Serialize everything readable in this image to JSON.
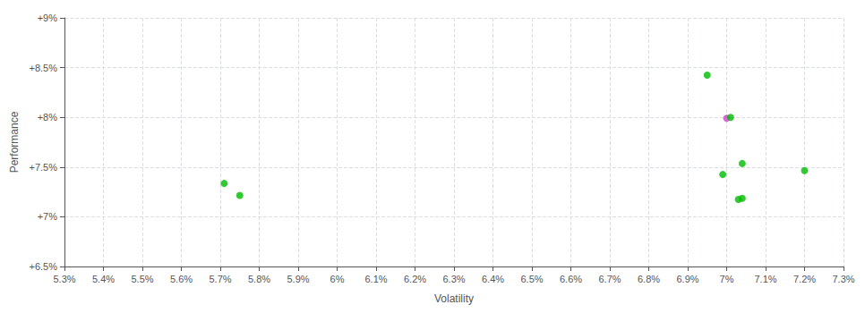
{
  "chart_data": {
    "type": "scatter",
    "xlabel": "Volatility",
    "ylabel": "Performance",
    "x": [
      0.0571,
      0.0575,
      0.0695,
      0.07,
      0.0701,
      0.0704,
      0.0699,
      0.0704,
      0.0703,
      0.072
    ],
    "values": [
      0.07335,
      0.07215,
      0.08425,
      0.0799,
      0.08,
      0.07535,
      0.07425,
      0.07185,
      0.07175,
      0.07465
    ],
    "colors": [
      "#00bb00",
      "#00bb00",
      "#00bb00",
      "#cc44cc",
      "#00bb00",
      "#00bb00",
      "#00bb00",
      "#00bb00",
      "#00bb00",
      "#00bb00"
    ],
    "marker": "circle",
    "xlim": [
      0.053,
      0.073
    ],
    "ylim": [
      0.065,
      0.09
    ],
    "xticks": [
      {
        "value": 0.053,
        "label": "5.3%"
      },
      {
        "value": 0.054,
        "label": "5.4%"
      },
      {
        "value": 0.055,
        "label": "5.5%"
      },
      {
        "value": 0.056,
        "label": "5.6%"
      },
      {
        "value": 0.057,
        "label": "5.7%"
      },
      {
        "value": 0.058,
        "label": "5.8%"
      },
      {
        "value": 0.059,
        "label": "5.9%"
      },
      {
        "value": 0.06,
        "label": "6%"
      },
      {
        "value": 0.061,
        "label": "6.1%"
      },
      {
        "value": 0.062,
        "label": "6.2%"
      },
      {
        "value": 0.063,
        "label": "6.3%"
      },
      {
        "value": 0.064,
        "label": "6.4%"
      },
      {
        "value": 0.065,
        "label": "6.5%"
      },
      {
        "value": 0.066,
        "label": "6.6%"
      },
      {
        "value": 0.067,
        "label": "6.7%"
      },
      {
        "value": 0.068,
        "label": "6.8%"
      },
      {
        "value": 0.069,
        "label": "6.9%"
      },
      {
        "value": 0.07,
        "label": "7%"
      },
      {
        "value": 0.071,
        "label": "7.1%"
      },
      {
        "value": 0.072,
        "label": "7.2%"
      },
      {
        "value": 0.073,
        "label": "7.3%"
      }
    ],
    "yticks": [
      {
        "value": 0.065,
        "label": "+6.5%"
      },
      {
        "value": 0.07,
        "label": "+7%"
      },
      {
        "value": 0.075,
        "label": "+7.5%"
      },
      {
        "value": 0.08,
        "label": "+8%"
      },
      {
        "value": 0.085,
        "label": "+8.5%"
      },
      {
        "value": 0.09,
        "label": "+9%"
      }
    ],
    "grid": true
  }
}
